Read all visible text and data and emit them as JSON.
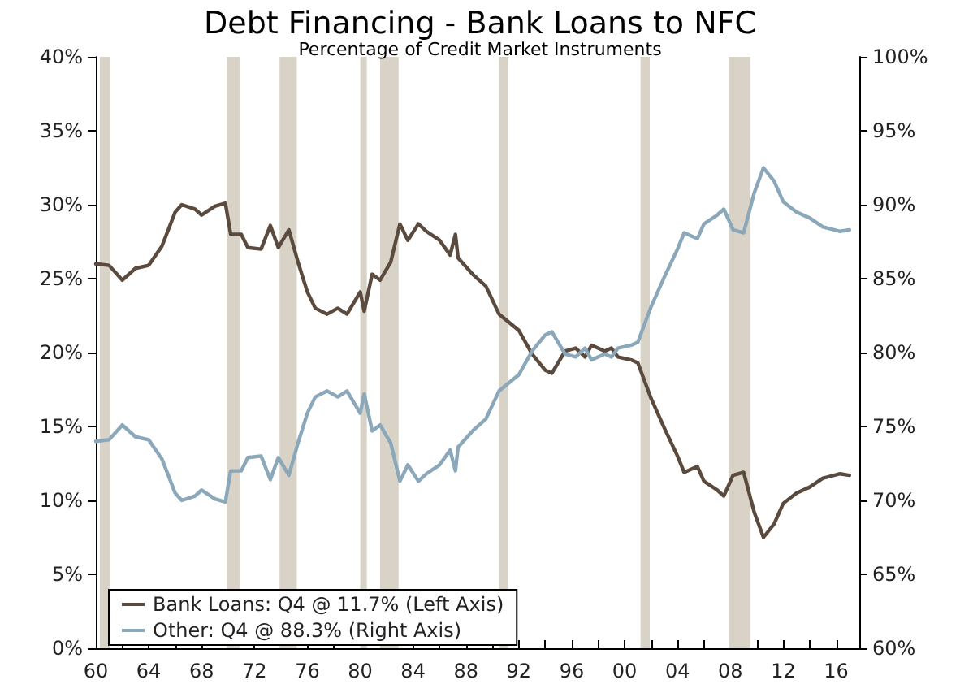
{
  "chart_data": {
    "type": "line",
    "title": "Debt Financing - Bank Loans to NFC",
    "subtitle": "Percentage of Credit Market Instruments",
    "series": [
      {
        "name": "Bank Loans: Q4 @ 11.7% (Left Axis)",
        "color": "#5b4a3e",
        "x": [
          1960,
          1961,
          1962,
          1963,
          1964,
          1965,
          1966,
          1966.5,
          1967.5,
          1968,
          1969,
          1969.8,
          1970.2,
          1971,
          1971.5,
          1972.5,
          1973.2,
          1973.8,
          1974.6,
          1975.3,
          1976,
          1976.6,
          1977.5,
          1978.3,
          1979,
          1980,
          1980.3,
          1980.9,
          1981.5,
          1982.3,
          1983,
          1983.6,
          1984.4,
          1985,
          1986,
          1986.8,
          1987.2,
          1987.4,
          1988.5,
          1989.5,
          1990.5,
          1992,
          1993,
          1994,
          1994.5,
          1995.5,
          1996.3,
          1997,
          1997.5,
          1998.5,
          1999,
          1999.5,
          2000.5,
          2001,
          2002,
          2003,
          2004,
          2004.5,
          2005.5,
          2006,
          2007,
          2007.5,
          2008.2,
          2009,
          2009.8,
          2010.5,
          2011.3,
          2012,
          2013,
          2014,
          2015,
          2016.3,
          2017
        ],
        "values": [
          26.0,
          25.9,
          24.9,
          25.7,
          25.9,
          27.2,
          29.5,
          30.0,
          29.7,
          29.3,
          29.9,
          30.1,
          28.0,
          28.0,
          27.1,
          27.0,
          28.6,
          27.1,
          28.3,
          26.1,
          24.1,
          23.0,
          22.6,
          23.0,
          22.6,
          24.1,
          22.8,
          25.3,
          24.9,
          26.1,
          28.7,
          27.6,
          28.7,
          28.2,
          27.6,
          26.6,
          28.0,
          26.4,
          25.3,
          24.5,
          22.6,
          21.5,
          19.9,
          18.8,
          18.6,
          20.1,
          20.3,
          19.7,
          20.5,
          20.1,
          20.3,
          19.7,
          19.5,
          19.3,
          16.9,
          14.9,
          13.0,
          11.9,
          12.3,
          11.3,
          10.7,
          10.3,
          11.7,
          11.9,
          9.2,
          7.5,
          8.4,
          9.8,
          10.5,
          10.9,
          11.5,
          11.8,
          11.7
        ]
      },
      {
        "name": "Other: Q4 @ 88.3% (Right Axis)",
        "color": "#8ba7ba",
        "axis": "y2",
        "x": [
          1960,
          1961,
          1962,
          1963,
          1964,
          1965,
          1966,
          1966.5,
          1967.5,
          1968,
          1969,
          1969.8,
          1970.2,
          1971,
          1971.5,
          1972.5,
          1973.2,
          1973.8,
          1974.6,
          1975.3,
          1976,
          1976.6,
          1977.5,
          1978.3,
          1979,
          1980,
          1980.3,
          1980.9,
          1981.5,
          1982.3,
          1983,
          1983.6,
          1984.4,
          1985,
          1986,
          1986.8,
          1987.2,
          1987.4,
          1988.5,
          1989.5,
          1990.5,
          1992,
          1993,
          1994,
          1994.5,
          1995.5,
          1996.3,
          1997,
          1997.5,
          1998.5,
          1999,
          1999.5,
          2000.5,
          2001,
          2002,
          2003,
          2004,
          2004.5,
          2005.5,
          2006,
          2007,
          2007.5,
          2008.2,
          2009,
          2009.8,
          2010.5,
          2011.3,
          2012,
          2013,
          2014,
          2015,
          2016.3,
          2017
        ],
        "values": [
          74.0,
          74.1,
          75.1,
          74.3,
          74.1,
          72.8,
          70.5,
          70.0,
          70.3,
          70.7,
          70.1,
          69.9,
          72.0,
          72.0,
          72.9,
          73.0,
          71.4,
          72.9,
          71.7,
          73.9,
          75.9,
          77.0,
          77.4,
          77.0,
          77.4,
          75.9,
          77.2,
          74.7,
          75.1,
          73.9,
          71.3,
          72.4,
          71.3,
          71.8,
          72.4,
          73.4,
          72.0,
          73.6,
          74.7,
          75.5,
          77.4,
          78.5,
          80.1,
          81.2,
          81.4,
          79.9,
          79.7,
          80.3,
          79.5,
          79.9,
          79.7,
          80.3,
          80.5,
          80.7,
          83.1,
          85.1,
          87.0,
          88.1,
          87.7,
          88.7,
          89.3,
          89.7,
          88.3,
          88.1,
          90.8,
          92.5,
          91.6,
          90.2,
          89.5,
          89.1,
          88.5,
          88.2,
          88.3
        ]
      }
    ],
    "xlim": [
      1960,
      2017.75
    ],
    "xticks": [
      {
        "value": 1960,
        "label": "60"
      },
      {
        "value": 1962,
        "label": null
      },
      {
        "value": 1964,
        "label": "64"
      },
      {
        "value": 1966,
        "label": null
      },
      {
        "value": 1968,
        "label": "68"
      },
      {
        "value": 1970,
        "label": null
      },
      {
        "value": 1972,
        "label": "72"
      },
      {
        "value": 1974,
        "label": null
      },
      {
        "value": 1976,
        "label": "76"
      },
      {
        "value": 1978,
        "label": null
      },
      {
        "value": 1980,
        "label": "80"
      },
      {
        "value": 1982,
        "label": null
      },
      {
        "value": 1984,
        "label": "84"
      },
      {
        "value": 1986,
        "label": null
      },
      {
        "value": 1988,
        "label": "88"
      },
      {
        "value": 1990,
        "label": null
      },
      {
        "value": 1992,
        "label": "92"
      },
      {
        "value": 1994,
        "label": null
      },
      {
        "value": 1996,
        "label": "96"
      },
      {
        "value": 1998,
        "label": null
      },
      {
        "value": 2000,
        "label": "00"
      },
      {
        "value": 2002,
        "label": null
      },
      {
        "value": 2004,
        "label": "04"
      },
      {
        "value": 2006,
        "label": null
      },
      {
        "value": 2008,
        "label": "08"
      },
      {
        "value": 2010,
        "label": null
      },
      {
        "value": 2012,
        "label": "12"
      },
      {
        "value": 2014,
        "label": null
      },
      {
        "value": 2016,
        "label": "16"
      }
    ],
    "ylim": [
      0,
      40
    ],
    "yticks": [
      {
        "value": 0,
        "label": "0%"
      },
      {
        "value": 5,
        "label": "5%"
      },
      {
        "value": 10,
        "label": "10%"
      },
      {
        "value": 15,
        "label": "15%"
      },
      {
        "value": 20,
        "label": "20%"
      },
      {
        "value": 25,
        "label": "25%"
      },
      {
        "value": 30,
        "label": "30%"
      },
      {
        "value": 35,
        "label": "35%"
      },
      {
        "value": 40,
        "label": "40%"
      }
    ],
    "y2lim": [
      60,
      100
    ],
    "y2ticks": [
      {
        "value": 60,
        "label": "60%"
      },
      {
        "value": 65,
        "label": "65%"
      },
      {
        "value": 70,
        "label": "70%"
      },
      {
        "value": 75,
        "label": "75%"
      },
      {
        "value": 80,
        "label": "80%"
      },
      {
        "value": 85,
        "label": "85%"
      },
      {
        "value": 90,
        "label": "90%"
      },
      {
        "value": 95,
        "label": "95%"
      },
      {
        "value": 100,
        "label": "100%"
      }
    ],
    "bands": [
      {
        "axis": "x",
        "from": 1960.3,
        "to": 1961.1,
        "color": "#d8d3c6"
      },
      {
        "axis": "x",
        "from": 1969.9,
        "to": 1970.9,
        "color": "#d8d3c6"
      },
      {
        "axis": "x",
        "from": 1973.9,
        "to": 1975.2,
        "color": "#d8d3c6"
      },
      {
        "axis": "x",
        "from": 1980.0,
        "to": 1980.5,
        "color": "#d8d3c6"
      },
      {
        "axis": "x",
        "from": 1981.5,
        "to": 1982.9,
        "color": "#d8d3c6"
      },
      {
        "axis": "x",
        "from": 1990.5,
        "to": 1991.2,
        "color": "#d8d3c6"
      },
      {
        "axis": "x",
        "from": 2001.2,
        "to": 2001.9,
        "color": "#d8d3c6"
      },
      {
        "axis": "x",
        "from": 2007.9,
        "to": 2009.5,
        "color": "#d8d3c6"
      }
    ],
    "grid": false,
    "legend": "bottom left",
    "line_style": "solid"
  }
}
